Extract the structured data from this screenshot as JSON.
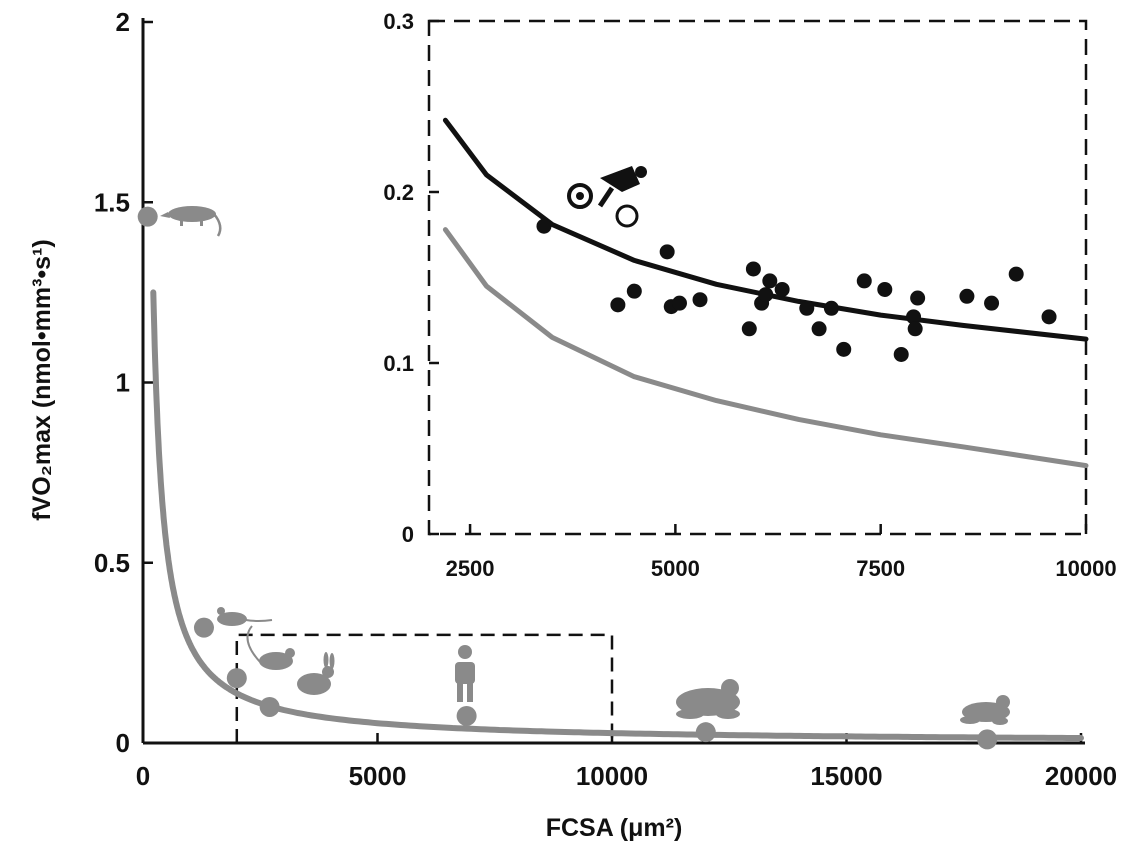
{
  "chart_data": [
    {
      "type": "scatter",
      "role": "main",
      "xlabel": "FCSA (μm²)",
      "ylabel": "fVO₂max (nmol•mm³•s¹)",
      "xlim": [
        0,
        20000
      ],
      "ylim": [
        0,
        2
      ],
      "xticks": [
        "0",
        "5000",
        "10000",
        "15000",
        "20000"
      ],
      "yticks": [
        "0",
        "0.5",
        "1",
        "1.5",
        "2"
      ],
      "curve": {
        "name": "",
        "color": "#8a8a8a",
        "model": "y = 275 / x",
        "x_range": [
          220,
          20000
        ]
      },
      "points": [
        {
          "x": 100,
          "y": 1.46,
          "animal": "shrew"
        },
        {
          "x": 1300,
          "y": 0.32,
          "animal": "mouse"
        },
        {
          "x": 2000,
          "y": 0.18,
          "animal": "rat"
        },
        {
          "x": 2700,
          "y": 0.1,
          "animal": "rabbit"
        },
        {
          "x": 6900,
          "y": 0.075,
          "animal": "human"
        },
        {
          "x": 12000,
          "y": 0.03,
          "animal": "frog"
        },
        {
          "x": 18000,
          "y": 0.01,
          "animal": "toad"
        }
      ],
      "inset_region": {
        "x": [
          2000,
          10000
        ],
        "y": [
          0,
          0.3
        ]
      },
      "point_color": "#8a8a8a"
    },
    {
      "type": "scatter",
      "role": "inset",
      "xlim": [
        2000,
        10000
      ],
      "ylim": [
        0,
        0.3
      ],
      "xticks": [
        "2500",
        "5000",
        "7500",
        "10000"
      ],
      "yticks": [
        "0",
        "0.1",
        "0.2",
        "0.3"
      ],
      "series": [
        {
          "name": "",
          "kind": "curve",
          "color": "#111111",
          "model": "y = 0.4 + 9.8/√x - ...",
          "points": [
            [
              2200,
              0.242
            ],
            [
              2700,
              0.21
            ],
            [
              3500,
              0.181
            ],
            [
              4500,
              0.16
            ],
            [
              5500,
              0.146
            ],
            [
              6500,
              0.136
            ],
            [
              7500,
              0.128
            ],
            [
              8500,
              0.122
            ],
            [
              10000,
              0.114
            ]
          ]
        },
        {
          "name": "",
          "kind": "curve",
          "color": "#8a8a8a",
          "points": [
            [
              2200,
              0.178
            ],
            [
              2700,
              0.145
            ],
            [
              3500,
              0.115
            ],
            [
              4500,
              0.092
            ],
            [
              5500,
              0.078
            ],
            [
              6500,
              0.067
            ],
            [
              7500,
              0.058
            ],
            [
              8500,
              0.051
            ],
            [
              10000,
              0.04
            ]
          ]
        },
        {
          "name": "",
          "kind": "points",
          "color": "#111111",
          "points": [
            [
              3400,
              0.18
            ],
            [
              4300,
              0.134
            ],
            [
              4500,
              0.142
            ],
            [
              4900,
              0.165
            ],
            [
              4950,
              0.133
            ],
            [
              5050,
              0.135
            ],
            [
              5300,
              0.137
            ],
            [
              5900,
              0.12
            ],
            [
              5950,
              0.155
            ],
            [
              6050,
              0.135
            ],
            [
              6100,
              0.14
            ],
            [
              6150,
              0.148
            ],
            [
              6300,
              0.143
            ],
            [
              6600,
              0.132
            ],
            [
              6750,
              0.12
            ],
            [
              6900,
              0.132
            ],
            [
              7050,
              0.108
            ],
            [
              7300,
              0.148
            ],
            [
              7550,
              0.143
            ],
            [
              7750,
              0.105
            ],
            [
              7900,
              0.127
            ],
            [
              7920,
              0.12
            ],
            [
              7950,
              0.138
            ],
            [
              8550,
              0.139
            ],
            [
              8850,
              0.135
            ],
            [
              9150,
              0.152
            ],
            [
              9550,
              0.127
            ]
          ]
        }
      ]
    }
  ]
}
